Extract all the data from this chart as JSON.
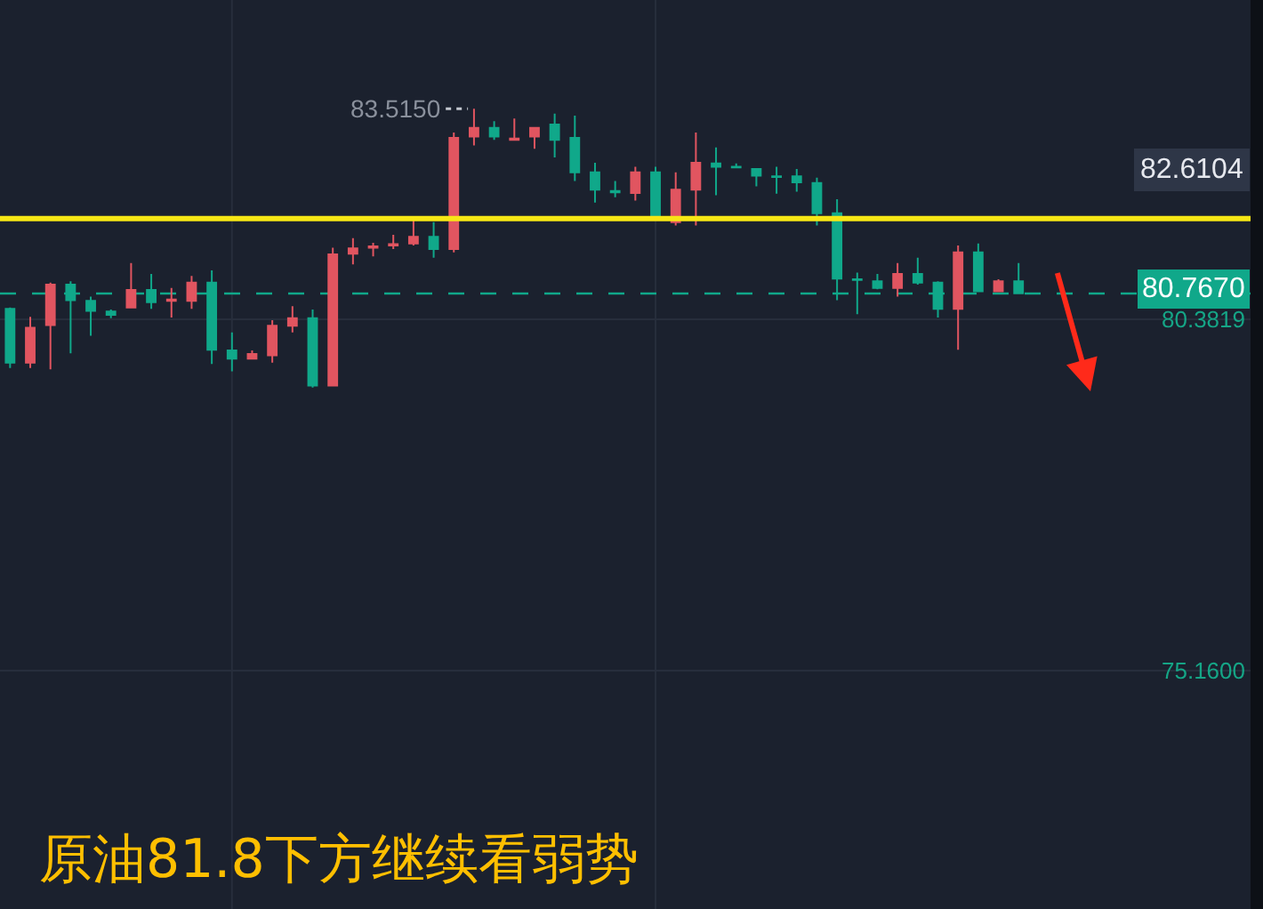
{
  "chart_data": {
    "type": "candlestick",
    "categories": [
      null,
      null,
      null,
      null,
      null,
      null,
      null,
      null,
      null,
      null,
      null,
      null,
      null,
      null,
      null,
      null,
      null,
      null,
      null,
      null,
      null,
      null,
      null,
      null,
      null,
      null,
      null,
      null,
      null,
      null,
      null,
      null,
      null,
      null,
      null,
      null,
      null,
      null,
      null,
      null,
      null,
      null,
      null,
      null,
      null,
      null,
      null,
      null,
      null,
      null,
      null,
      null,
      null,
      null,
      null,
      null,
      null,
      null,
      null,
      null,
      null,
      null
    ],
    "ohlc": [
      [
        80.54,
        80.56,
        79.66,
        79.74
      ],
      [
        79.74,
        80.42,
        79.66,
        80.26
      ],
      [
        80.3,
        80.93,
        79.64,
        80.9
      ],
      [
        80.9,
        80.95,
        79.88,
        80.67
      ],
      [
        80.66,
        80.72,
        80.14,
        80.51
      ],
      [
        80.5,
        80.53,
        80.4,
        80.45
      ],
      [
        80.56,
        81.22,
        80.56,
        80.82
      ],
      [
        80.82,
        81.06,
        80.54,
        80.64
      ],
      [
        80.66,
        80.85,
        80.41,
        80.68
      ],
      [
        80.66,
        81.03,
        80.54,
        80.93
      ],
      [
        80.93,
        81.11,
        79.72,
        79.93
      ],
      [
        79.92,
        80.19,
        79.61,
        79.8
      ],
      [
        79.8,
        79.92,
        79.8,
        79.87
      ],
      [
        79.85,
        80.37,
        79.74,
        80.29
      ],
      [
        80.29,
        80.58,
        80.19,
        80.4
      ],
      [
        80.4,
        80.53,
        79.37,
        79.4
      ],
      [
        79.4,
        81.45,
        79.4,
        81.35
      ],
      [
        81.36,
        81.59,
        81.2,
        81.44
      ],
      [
        81.45,
        81.52,
        81.32,
        81.47
      ],
      [
        81.48,
        81.64,
        81.43,
        81.5
      ],
      [
        81.51,
        81.85,
        81.48,
        81.61
      ],
      [
        81.61,
        81.83,
        81.3,
        81.43
      ],
      [
        81.43,
        83.16,
        81.38,
        83.08
      ],
      [
        83.1,
        83.515,
        82.97,
        83.23
      ],
      [
        83.23,
        83.33,
        83.05,
        83.1
      ],
      [
        83.05,
        83.37,
        83.05,
        83.07
      ],
      [
        83.1,
        83.23,
        82.92,
        83.23
      ],
      [
        83.28,
        83.44,
        82.79,
        83.05
      ],
      [
        83.08,
        83.41,
        82.44,
        82.57
      ],
      [
        82.57,
        82.71,
        82.12,
        82.31
      ],
      [
        82.29,
        82.44,
        82.2,
        82.27
      ],
      [
        82.26,
        82.65,
        82.15,
        82.57
      ],
      [
        82.57,
        82.65,
        81.87,
        81.91
      ],
      [
        81.83,
        82.57,
        81.78,
        82.31
      ],
      [
        82.31,
        83.16,
        81.78,
        82.71
      ],
      [
        82.7,
        82.94,
        82.23,
        82.65
      ],
      [
        82.65,
        82.7,
        82.63,
        82.64
      ],
      [
        82.62,
        82.62,
        82.36,
        82.52
      ],
      [
        82.51,
        82.65,
        82.25,
        82.5
      ],
      [
        82.51,
        82.62,
        82.28,
        82.42
      ],
      [
        82.41,
        82.49,
        81.78,
        81.96
      ],
      [
        81.96,
        82.17,
        80.67,
        80.99
      ],
      [
        80.98,
        81.08,
        80.46,
        80.97
      ],
      [
        80.95,
        81.06,
        80.83,
        80.85
      ],
      [
        80.85,
        81.22,
        80.72,
        81.06
      ],
      [
        81.06,
        81.3,
        80.9,
        80.93
      ],
      [
        80.93,
        80.95,
        80.41,
        80.54
      ],
      [
        80.54,
        81.48,
        79.93,
        81.38
      ],
      [
        81.38,
        81.51,
        80.8,
        80.8
      ],
      [
        80.8,
        80.98,
        80.8,
        80.95
      ],
      [
        80.95,
        81.22,
        80.77,
        80.77
      ],
      null,
      null,
      null,
      null,
      null,
      null,
      null,
      null,
      null,
      null,
      null
    ],
    "colors": [
      "#10a88a",
      "#e15560",
      "#e15560",
      "#10a88a",
      "#10a88a",
      "#10a88a",
      "#e15560",
      "#10a88a",
      "#e15560",
      "#e15560",
      "#10a88a",
      "#10a88a",
      "#e15560",
      "#e15560",
      "#e15560",
      "#10a88a",
      "#e15560",
      "#e15560",
      "#e15560",
      "#e15560",
      "#e15560",
      "#10a88a",
      "#e15560",
      "#e15560",
      "#10a88a",
      "#e15560",
      "#e15560",
      "#10a88a",
      "#10a88a",
      "#10a88a",
      "#10a88a",
      "#e15560",
      "#10a88a",
      "#e15560",
      "#e15560",
      "#10a88a",
      "#10a88a",
      "#10a88a",
      "#10a88a",
      "#10a88a",
      "#10a88a",
      "#10a88a",
      "#10a88a",
      "#10a88a",
      "#e15560",
      "#10a88a",
      "#10a88a",
      "#e15560",
      "#10a88a",
      "#e15560",
      "#10a88a",
      null,
      null,
      null,
      null,
      null,
      null,
      null,
      null,
      null,
      null,
      null
    ],
    "ylim": [
      71.62,
      85.13
    ],
    "yticks": [
      {
        "value": 80.3819,
        "label": "80.3819"
      },
      {
        "value": 75.16,
        "label": "75.1600"
      }
    ],
    "tick_labels": "y",
    "grid": "y",
    "ref_lines": [
      {
        "axis": "y",
        "value": 81.88,
        "color": "#f7e715"
      },
      {
        "axis": "y",
        "value": 80.767,
        "label": "80.7670",
        "color": "#10a88a",
        "line_style": "dashed"
      }
    ],
    "annotations": [
      "83.5150",
      "82.6104",
      "原油81.8下方继续看弱势"
    ]
  }
}
